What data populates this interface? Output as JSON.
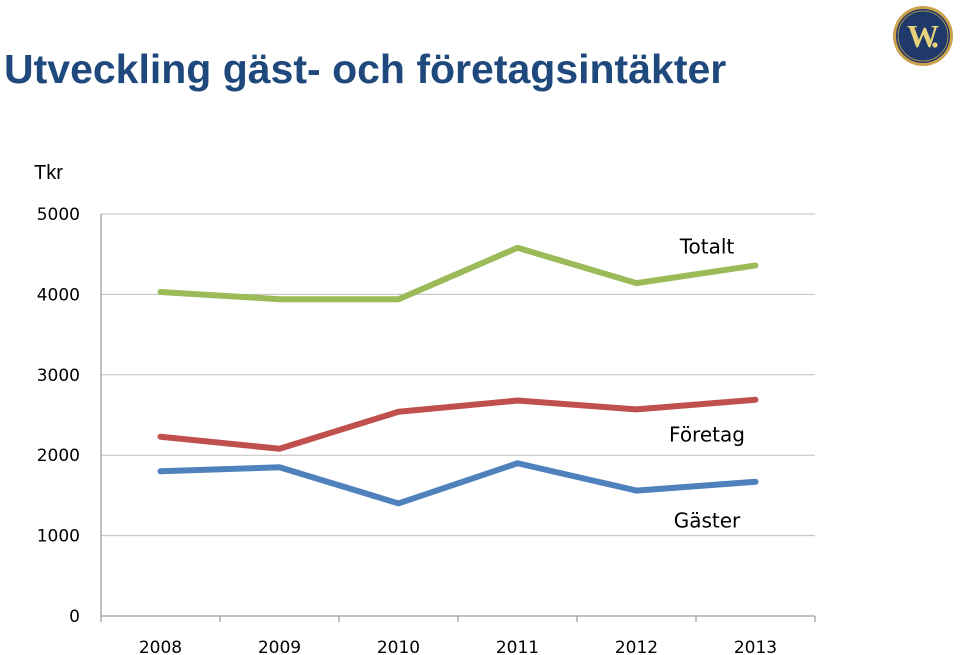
{
  "title": "Utveckling gäst- och företagsintäkter",
  "logo": {
    "icon": "w-monogram-logo",
    "text": "W",
    "colors": {
      "bg": "#1f3a6a",
      "ring": "#c9a24b"
    }
  },
  "chart_data": {
    "type": "line",
    "y_unit": "Tkr",
    "categories": [
      "2008",
      "2009",
      "2010",
      "2011",
      "2012",
      "2013"
    ],
    "ylim": [
      0,
      5000
    ],
    "yticks": [
      0,
      1000,
      2000,
      3000,
      4000,
      5000
    ],
    "grid": true,
    "series": [
      {
        "name": "Totalt",
        "color": "#9bbb59",
        "values": [
          4030,
          3940,
          3940,
          4580,
          4140,
          4360
        ]
      },
      {
        "name": "Företag",
        "color": "#c0504d",
        "values": [
          2230,
          2080,
          2540,
          2680,
          2570,
          2690
        ]
      },
      {
        "name": "Gäster",
        "color": "#4f81bd",
        "values": [
          1800,
          1850,
          1400,
          1900,
          1560,
          1670
        ]
      }
    ]
  }
}
